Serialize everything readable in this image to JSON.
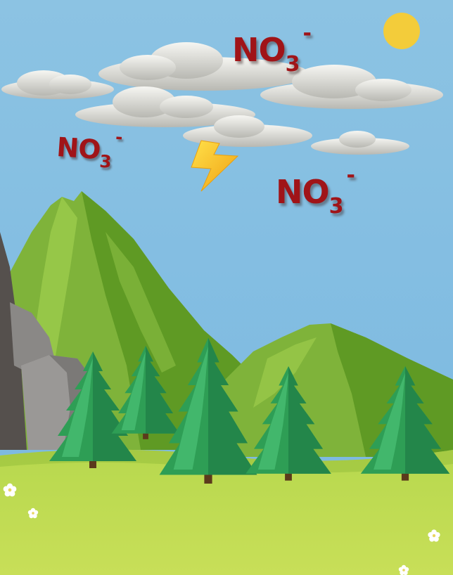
{
  "labels": [
    {
      "base": "NO",
      "subscript": "3",
      "superscript": "-"
    },
    {
      "base": "NO",
      "subscript": "3",
      "superscript": "-"
    },
    {
      "base": "NO",
      "subscript": "3",
      "superscript": "-"
    }
  ],
  "colors": {
    "sky": "#8cc3e3",
    "sun": "#f3cc3a",
    "label": "#a01418",
    "grass": "#c4dc56",
    "mountain": "#7fb33a",
    "tree": "#2e9e55",
    "lightning": "#f7c81a"
  }
}
